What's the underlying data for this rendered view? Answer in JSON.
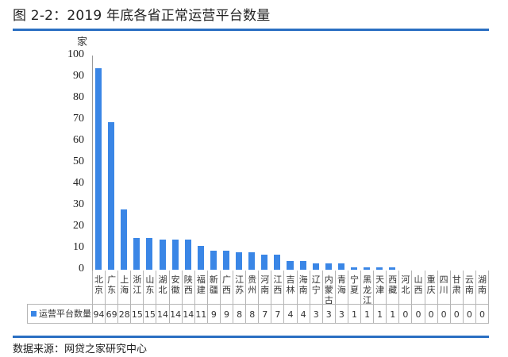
{
  "header": {
    "title": "图 2-2：2019 年底各省正常运营平台数量"
  },
  "footer": {
    "source": "数据来源：网贷之家研究中心"
  },
  "colors": {
    "bar": "#3a86e6",
    "rule": "#2a6fc2"
  },
  "chart_data": {
    "type": "bar",
    "title": "2019 年底各省正常运营平台数量",
    "xlabel": "",
    "ylabel": "家",
    "ylim": [
      0,
      100
    ],
    "yticks": [
      0,
      10,
      20,
      30,
      40,
      50,
      60,
      70,
      80,
      90,
      100
    ],
    "grid": false,
    "legend_position": "bottom-table",
    "categories": [
      "北京",
      "广东",
      "上海",
      "浙江",
      "山东",
      "湖北",
      "安徽",
      "陕西",
      "福建",
      "新疆",
      "广西",
      "江苏",
      "贵州",
      "河南",
      "江西",
      "吉林",
      "海南",
      "辽宁",
      "内蒙古",
      "青海",
      "宁夏",
      "黑龙江",
      "天津",
      "西藏",
      "河北",
      "山西",
      "重庆",
      "四川",
      "甘肃",
      "云南",
      "湖南"
    ],
    "series": [
      {
        "name": "运营平台数量",
        "values": [
          94,
          69,
          28,
          15,
          15,
          14,
          14,
          14,
          11,
          9,
          9,
          8,
          8,
          7,
          7,
          4,
          4,
          3,
          3,
          3,
          1,
          1,
          1,
          1,
          0,
          0,
          0,
          0,
          0,
          0,
          0
        ]
      }
    ]
  }
}
